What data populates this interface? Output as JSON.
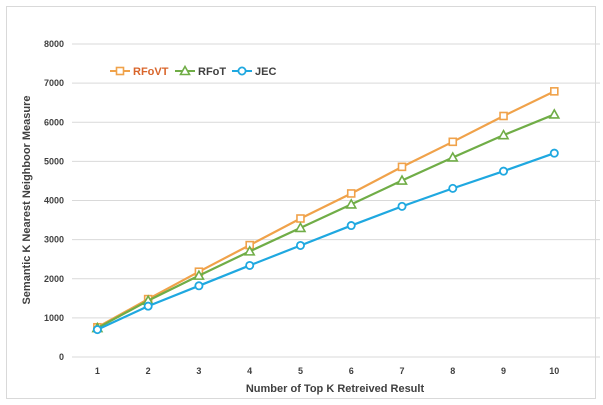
{
  "chart_data": {
    "type": "line",
    "title": "",
    "xlabel": "Number of Top K Retreived Result",
    "ylabel": "Semantic K Nearest Neighboor Measure",
    "x": [
      1,
      2,
      3,
      4,
      5,
      6,
      7,
      8,
      9,
      10
    ],
    "ylim": [
      0,
      8000
    ],
    "yticks": [
      0,
      1000,
      2000,
      3000,
      4000,
      5000,
      6000,
      7000,
      8000
    ],
    "grid": true,
    "legend_position": "top-left",
    "series": [
      {
        "name": "RFoVT",
        "color": "#f0a24a",
        "label_color": "#d9652b",
        "marker": "square",
        "values": [
          760,
          1480,
          2180,
          2860,
          3540,
          4180,
          4860,
          5500,
          6160,
          6790
        ]
      },
      {
        "name": "RFoT",
        "color": "#70ad47",
        "label_color": "#404040",
        "marker": "triangle",
        "values": [
          740,
          1440,
          2080,
          2700,
          3300,
          3900,
          4510,
          5100,
          5670,
          6200
        ]
      },
      {
        "name": "JEC",
        "color": "#1fa8e0",
        "label_color": "#404040",
        "marker": "circle",
        "values": [
          700,
          1300,
          1820,
          2340,
          2850,
          3360,
          3850,
          4310,
          4750,
          5210
        ]
      }
    ]
  }
}
